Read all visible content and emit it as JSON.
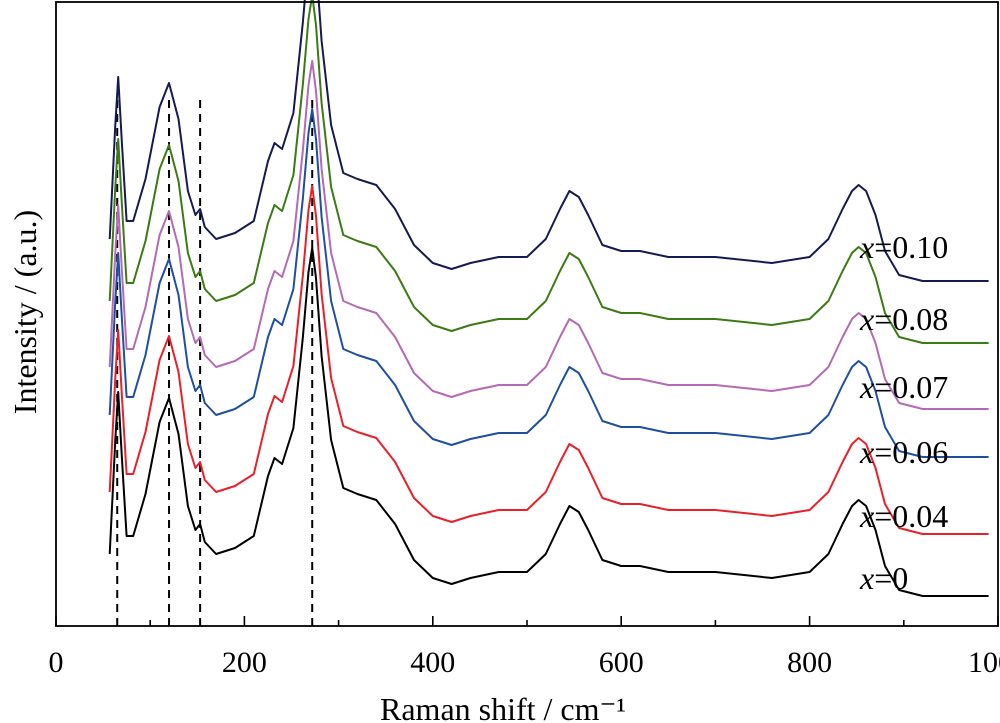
{
  "chart_data": {
    "type": "line",
    "title": "",
    "xlabel": "Raman shift / cm⁻¹",
    "ylabel": "Intensity / (a.u.)",
    "xlim": [
      0,
      1000
    ],
    "xticks": [
      "0",
      "200",
      "400",
      "600",
      "800",
      "1000"
    ],
    "yticks_shown": false,
    "grid": false,
    "reference_lines_x": [
      65,
      120,
      153,
      272
    ],
    "series": [
      {
        "name": "x=0",
        "var": "x",
        "value": "=0",
        "color": "#000000",
        "x": [
          57,
          63,
          66,
          70,
          75,
          82,
          95,
          110,
          120,
          130,
          140,
          148,
          153,
          158,
          170,
          190,
          210,
          225,
          232,
          240,
          252,
          262,
          268,
          272,
          276,
          282,
          292,
          305,
          320,
          340,
          360,
          380,
          400,
          420,
          440,
          470,
          500,
          520,
          535,
          545,
          555,
          565,
          580,
          600,
          620,
          650,
          700,
          760,
          800,
          820,
          835,
          845,
          852,
          860,
          870,
          880,
          895,
          920,
          960,
          990
        ],
        "y": [
          0.09,
          0.28,
          0.36,
          0.25,
          0.12,
          0.12,
          0.19,
          0.31,
          0.35,
          0.29,
          0.17,
          0.13,
          0.14,
          0.11,
          0.09,
          0.1,
          0.12,
          0.22,
          0.25,
          0.24,
          0.3,
          0.45,
          0.56,
          0.6,
          0.55,
          0.42,
          0.28,
          0.2,
          0.19,
          0.18,
          0.14,
          0.08,
          0.05,
          0.04,
          0.05,
          0.06,
          0.06,
          0.09,
          0.14,
          0.17,
          0.16,
          0.13,
          0.08,
          0.07,
          0.07,
          0.06,
          0.06,
          0.05,
          0.06,
          0.09,
          0.14,
          0.17,
          0.18,
          0.17,
          0.13,
          0.07,
          0.03,
          0.02,
          0.02,
          0.02
        ]
      },
      {
        "name": "x=0.04",
        "var": "x",
        "value": "=0.04",
        "color": "#e8202a",
        "x": [
          57,
          63,
          66,
          70,
          75,
          82,
          95,
          110,
          120,
          130,
          140,
          148,
          153,
          158,
          170,
          190,
          210,
          225,
          232,
          240,
          252,
          262,
          268,
          272,
          276,
          282,
          292,
          305,
          320,
          340,
          360,
          380,
          400,
          420,
          440,
          470,
          500,
          520,
          535,
          545,
          555,
          565,
          580,
          600,
          620,
          650,
          700,
          760,
          800,
          820,
          835,
          845,
          852,
          860,
          870,
          880,
          895,
          920,
          960,
          990
        ],
        "y": [
          0.09,
          0.28,
          0.36,
          0.25,
          0.12,
          0.12,
          0.19,
          0.31,
          0.35,
          0.29,
          0.17,
          0.13,
          0.14,
          0.11,
          0.09,
          0.1,
          0.12,
          0.22,
          0.25,
          0.24,
          0.3,
          0.45,
          0.56,
          0.6,
          0.55,
          0.42,
          0.28,
          0.2,
          0.19,
          0.18,
          0.14,
          0.08,
          0.05,
          0.04,
          0.05,
          0.06,
          0.06,
          0.09,
          0.14,
          0.17,
          0.16,
          0.13,
          0.08,
          0.07,
          0.07,
          0.06,
          0.06,
          0.05,
          0.06,
          0.09,
          0.14,
          0.17,
          0.18,
          0.17,
          0.13,
          0.07,
          0.03,
          0.02,
          0.02,
          0.02
        ]
      },
      {
        "name": "x=0.06",
        "var": "x",
        "value": "=0.06",
        "color": "#1f4fa0",
        "x": [
          57,
          63,
          66,
          70,
          75,
          82,
          95,
          110,
          120,
          130,
          140,
          148,
          153,
          158,
          170,
          190,
          210,
          225,
          232,
          240,
          252,
          262,
          268,
          272,
          276,
          282,
          292,
          305,
          320,
          340,
          360,
          380,
          400,
          420,
          440,
          470,
          500,
          520,
          535,
          545,
          555,
          565,
          580,
          600,
          620,
          650,
          700,
          760,
          800,
          820,
          835,
          845,
          852,
          860,
          870,
          880,
          895,
          920,
          960,
          990
        ],
        "y": [
          0.09,
          0.28,
          0.36,
          0.25,
          0.12,
          0.12,
          0.19,
          0.31,
          0.35,
          0.29,
          0.17,
          0.13,
          0.14,
          0.11,
          0.09,
          0.1,
          0.12,
          0.22,
          0.25,
          0.24,
          0.3,
          0.45,
          0.56,
          0.6,
          0.55,
          0.42,
          0.28,
          0.2,
          0.19,
          0.18,
          0.14,
          0.08,
          0.05,
          0.04,
          0.05,
          0.06,
          0.06,
          0.09,
          0.14,
          0.17,
          0.16,
          0.13,
          0.08,
          0.07,
          0.07,
          0.06,
          0.06,
          0.05,
          0.06,
          0.09,
          0.14,
          0.17,
          0.18,
          0.17,
          0.13,
          0.07,
          0.03,
          0.02,
          0.02,
          0.02
        ]
      },
      {
        "name": "x=0.07",
        "var": "x",
        "value": "=0.07",
        "color": "#b46ab4",
        "x": [
          57,
          63,
          66,
          70,
          75,
          82,
          95,
          110,
          120,
          130,
          140,
          148,
          153,
          158,
          170,
          190,
          210,
          225,
          232,
          240,
          252,
          262,
          268,
          272,
          276,
          282,
          292,
          305,
          320,
          340,
          360,
          380,
          400,
          420,
          440,
          470,
          500,
          520,
          535,
          545,
          555,
          565,
          580,
          600,
          620,
          650,
          700,
          760,
          800,
          820,
          835,
          845,
          852,
          860,
          870,
          880,
          895,
          920,
          960,
          990
        ],
        "y": [
          0.09,
          0.28,
          0.36,
          0.25,
          0.12,
          0.12,
          0.19,
          0.31,
          0.35,
          0.29,
          0.17,
          0.13,
          0.14,
          0.11,
          0.09,
          0.1,
          0.12,
          0.22,
          0.25,
          0.24,
          0.3,
          0.45,
          0.56,
          0.6,
          0.55,
          0.42,
          0.28,
          0.2,
          0.19,
          0.18,
          0.14,
          0.08,
          0.05,
          0.04,
          0.05,
          0.06,
          0.06,
          0.09,
          0.14,
          0.17,
          0.16,
          0.13,
          0.08,
          0.07,
          0.07,
          0.06,
          0.06,
          0.05,
          0.06,
          0.09,
          0.14,
          0.17,
          0.18,
          0.17,
          0.13,
          0.07,
          0.03,
          0.02,
          0.02,
          0.02
        ]
      },
      {
        "name": "x=0.08",
        "var": "x",
        "value": "=0.08",
        "color": "#3c7a14",
        "x": [
          57,
          63,
          66,
          70,
          75,
          82,
          95,
          110,
          120,
          130,
          140,
          148,
          153,
          158,
          170,
          190,
          210,
          225,
          232,
          240,
          252,
          262,
          268,
          272,
          276,
          282,
          292,
          305,
          320,
          340,
          360,
          380,
          400,
          420,
          440,
          470,
          500,
          520,
          535,
          545,
          555,
          565,
          580,
          600,
          620,
          650,
          700,
          760,
          800,
          820,
          835,
          845,
          852,
          860,
          870,
          880,
          895,
          920,
          960,
          990
        ],
        "y": [
          0.09,
          0.28,
          0.36,
          0.25,
          0.12,
          0.12,
          0.19,
          0.31,
          0.35,
          0.29,
          0.17,
          0.13,
          0.14,
          0.11,
          0.09,
          0.1,
          0.12,
          0.22,
          0.25,
          0.24,
          0.3,
          0.45,
          0.56,
          0.6,
          0.55,
          0.42,
          0.28,
          0.2,
          0.19,
          0.18,
          0.14,
          0.08,
          0.05,
          0.04,
          0.05,
          0.06,
          0.06,
          0.09,
          0.14,
          0.17,
          0.16,
          0.13,
          0.08,
          0.07,
          0.07,
          0.06,
          0.06,
          0.05,
          0.06,
          0.09,
          0.14,
          0.17,
          0.18,
          0.17,
          0.13,
          0.07,
          0.03,
          0.02,
          0.02,
          0.02
        ]
      },
      {
        "name": "x=0.10",
        "var": "x",
        "value": "=0.10",
        "color": "#141a52",
        "x": [
          57,
          63,
          66,
          70,
          75,
          82,
          95,
          110,
          120,
          130,
          140,
          148,
          153,
          158,
          170,
          190,
          210,
          225,
          232,
          240,
          252,
          262,
          268,
          272,
          276,
          282,
          292,
          305,
          320,
          340,
          360,
          380,
          400,
          420,
          440,
          470,
          500,
          520,
          535,
          545,
          555,
          565,
          580,
          600,
          620,
          650,
          700,
          760,
          800,
          820,
          835,
          845,
          852,
          860,
          870,
          880,
          895,
          920,
          960,
          990
        ],
        "y": [
          0.09,
          0.28,
          0.36,
          0.25,
          0.12,
          0.12,
          0.19,
          0.31,
          0.35,
          0.29,
          0.17,
          0.13,
          0.14,
          0.11,
          0.09,
          0.1,
          0.12,
          0.22,
          0.25,
          0.24,
          0.3,
          0.45,
          0.56,
          0.6,
          0.55,
          0.42,
          0.28,
          0.2,
          0.19,
          0.18,
          0.14,
          0.08,
          0.05,
          0.04,
          0.05,
          0.06,
          0.06,
          0.09,
          0.14,
          0.17,
          0.16,
          0.13,
          0.08,
          0.07,
          0.07,
          0.06,
          0.06,
          0.05,
          0.06,
          0.09,
          0.14,
          0.17,
          0.18,
          0.17,
          0.13,
          0.07,
          0.03,
          0.02,
          0.02,
          0.02
        ]
      }
    ]
  }
}
